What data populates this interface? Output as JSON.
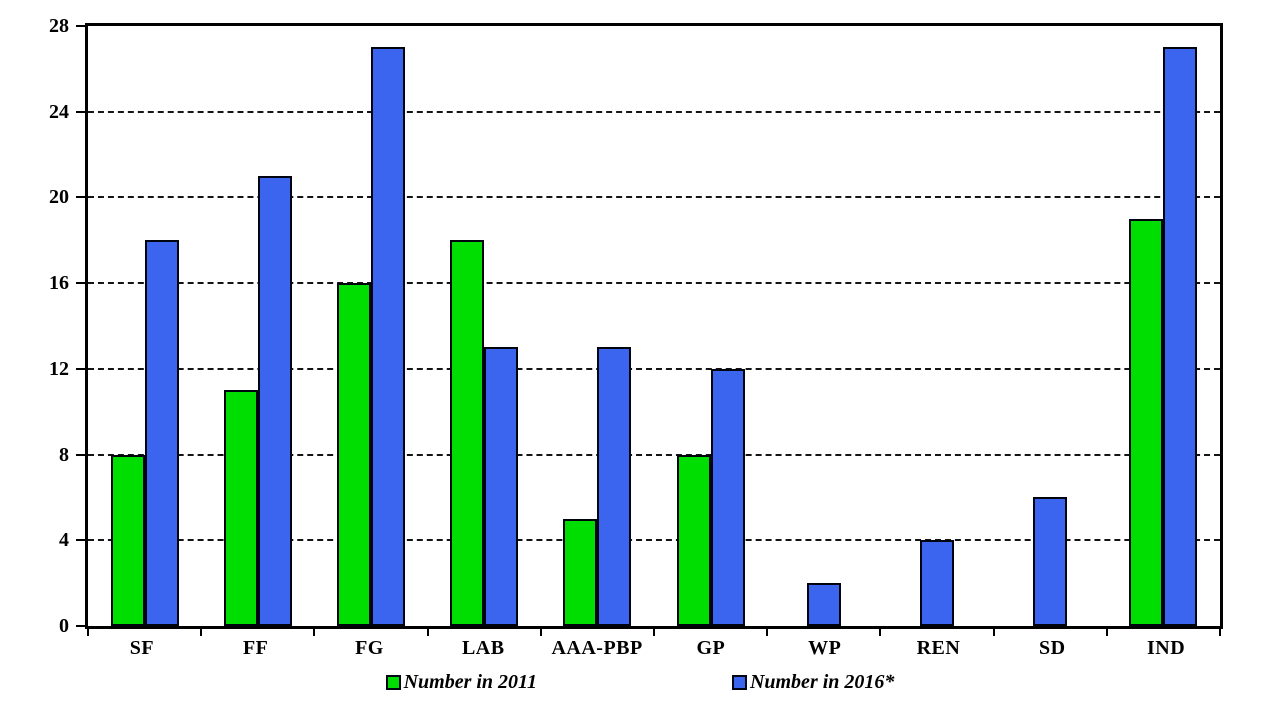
{
  "chart_data": {
    "type": "bar",
    "title": "",
    "xlabel": "",
    "ylabel": "",
    "categories": [
      "SF",
      "FF",
      "FG",
      "LAB",
      "AAA-PBP",
      "GP",
      "WP",
      "REN",
      "SD",
      "IND"
    ],
    "series": [
      {
        "name": "Number in 2011",
        "color": "#00dd00",
        "values": [
          8,
          11,
          16,
          18,
          5,
          8,
          0,
          0,
          0,
          19
        ]
      },
      {
        "name": "Number in 2016*",
        "color": "#3b64ef",
        "values": [
          18,
          21,
          27,
          13,
          13,
          12,
          2,
          4,
          6,
          27
        ]
      }
    ],
    "ylim": [
      0,
      28
    ],
    "yticks": [
      0,
      4,
      8,
      12,
      16,
      20,
      24,
      28
    ],
    "grid": "horizontal-dashed",
    "legend_position": "bottom",
    "colors": {
      "axis": "#000000",
      "gridline": "#141414",
      "bar_outline": "#00040f",
      "background": "#ffffff",
      "text": "#000000"
    }
  }
}
